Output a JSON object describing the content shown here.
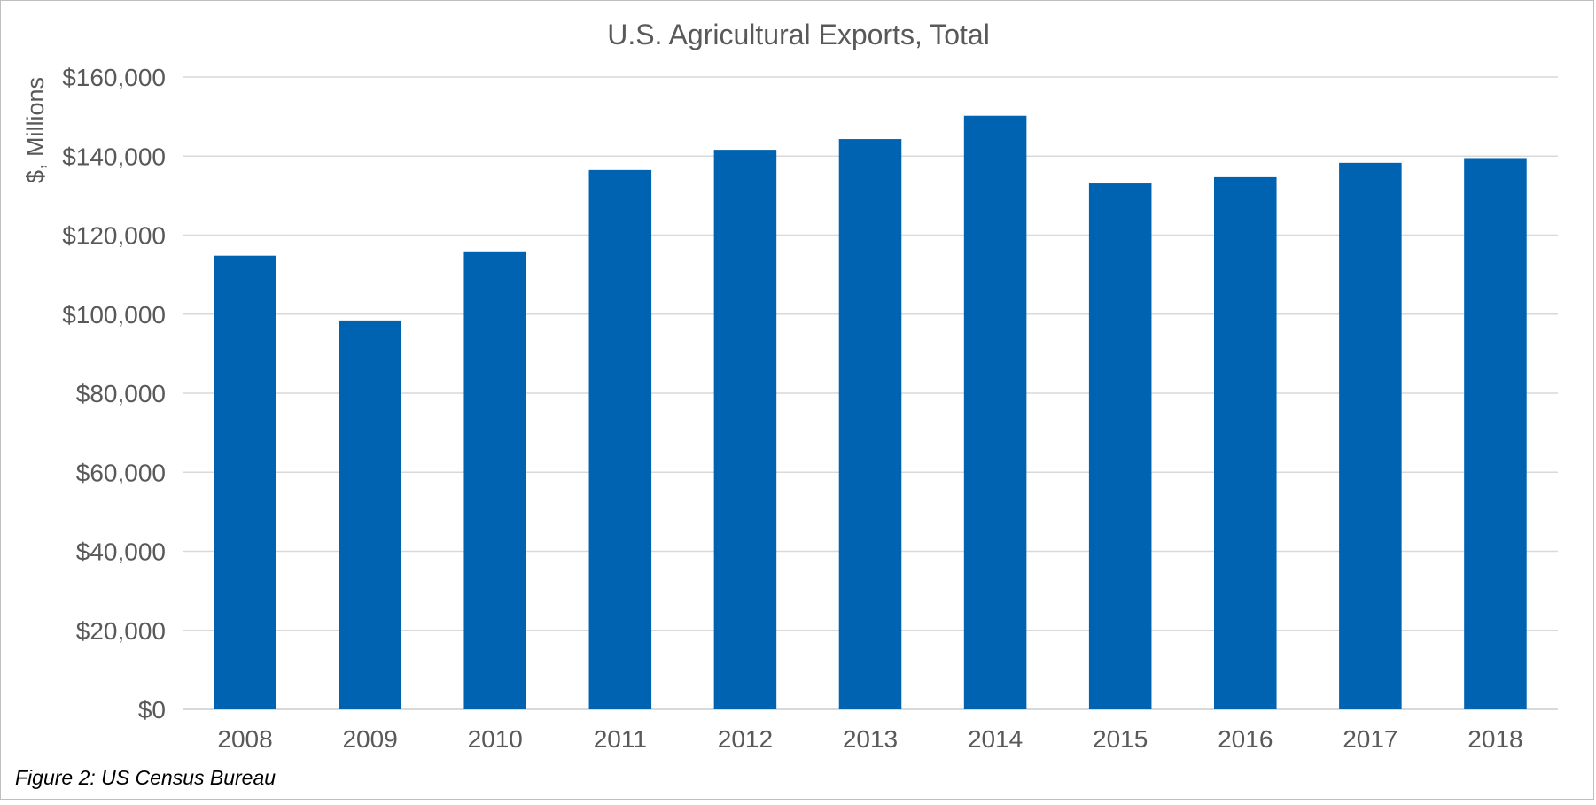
{
  "chart_data": {
    "type": "bar",
    "title": "U.S. Agricultural Exports, Total",
    "xlabel": "",
    "ylabel": "$, Millions",
    "categories": [
      "2008",
      "2009",
      "2010",
      "2011",
      "2012",
      "2013",
      "2014",
      "2015",
      "2016",
      "2017",
      "2018"
    ],
    "values": [
      114800,
      98400,
      115900,
      136500,
      141600,
      144300,
      150200,
      133100,
      134700,
      138300,
      139500
    ],
    "ylim": [
      0,
      160000
    ],
    "yticks": [
      0,
      20000,
      40000,
      60000,
      80000,
      100000,
      120000,
      140000,
      160000
    ],
    "ytick_labels": [
      "$0",
      "$20,000",
      "$40,000",
      "$60,000",
      "$80,000",
      "$100,000",
      "$120,000",
      "$140,000",
      "$160,000"
    ],
    "grid": true,
    "legend": "none",
    "colors": {
      "bar": "#0063b1",
      "grid": "#d9d9d9",
      "text": "#595959"
    }
  },
  "caption": "Figure 2: US Census Bureau"
}
